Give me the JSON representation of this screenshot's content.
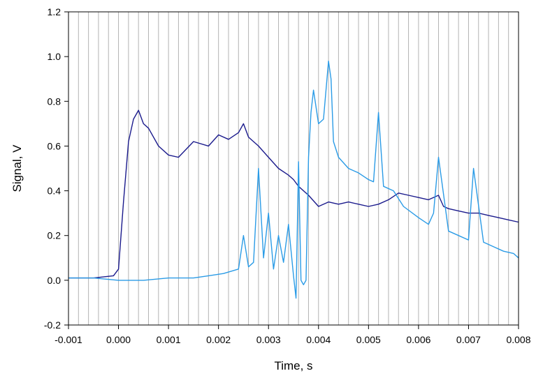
{
  "chart_data": {
    "type": "line",
    "title": "",
    "xlabel": "Time, s",
    "ylabel": "Signal, V",
    "xlim": [
      -0.001,
      0.008
    ],
    "ylim": [
      -0.2,
      1.2
    ],
    "x_ticks": [
      -0.001,
      0.0,
      0.001,
      0.002,
      0.003,
      0.004,
      0.005,
      0.006,
      0.007,
      0.008
    ],
    "x_tick_labels": [
      "-0.001",
      "0.000",
      "0.001",
      "0.002",
      "0.003",
      "0.004",
      "0.005",
      "0.006",
      "0.007",
      "0.008"
    ],
    "y_ticks": [
      -0.2,
      0.0,
      0.2,
      0.4,
      0.6,
      0.8,
      1.0,
      1.2
    ],
    "y_tick_labels": [
      "-0.2",
      "0.0",
      "0.2",
      "0.4",
      "0.6",
      "0.8",
      "1.0",
      "1.2"
    ],
    "grid": "vertical",
    "legend": "none",
    "series": [
      {
        "color": "#1a1a8c",
        "x": [
          -0.001,
          -0.0005,
          -0.0001,
          0.0,
          0.0001,
          0.0002,
          0.0003,
          0.0004,
          0.0005,
          0.0006,
          0.0008,
          0.001,
          0.0012,
          0.0015,
          0.0018,
          0.002,
          0.0022,
          0.0024,
          0.0025,
          0.0026,
          0.0028,
          0.003,
          0.0032,
          0.0034,
          0.0035,
          0.0036,
          0.0038,
          0.004,
          0.0042,
          0.0044,
          0.0046,
          0.0048,
          0.005,
          0.0052,
          0.0054,
          0.0056,
          0.0058,
          0.006,
          0.0062,
          0.0064,
          0.0065,
          0.0066,
          0.0068,
          0.007,
          0.0072,
          0.0074,
          0.0076,
          0.0078,
          0.008
        ],
        "y": [
          0.01,
          0.01,
          0.02,
          0.05,
          0.35,
          0.62,
          0.72,
          0.76,
          0.7,
          0.68,
          0.6,
          0.56,
          0.55,
          0.62,
          0.6,
          0.65,
          0.63,
          0.66,
          0.7,
          0.64,
          0.6,
          0.55,
          0.5,
          0.47,
          0.45,
          0.42,
          0.38,
          0.33,
          0.35,
          0.34,
          0.35,
          0.34,
          0.33,
          0.34,
          0.36,
          0.39,
          0.38,
          0.37,
          0.36,
          0.38,
          0.33,
          0.32,
          0.31,
          0.3,
          0.3,
          0.29,
          0.28,
          0.27,
          0.26
        ]
      },
      {
        "color": "#2a9be6",
        "x": [
          -0.001,
          -0.0005,
          0.0,
          0.0005,
          0.001,
          0.0015,
          0.0018,
          0.0021,
          0.0024,
          0.0025,
          0.0026,
          0.0027,
          0.0028,
          0.0029,
          0.003,
          0.0031,
          0.0032,
          0.0033,
          0.0034,
          0.0035,
          0.00355,
          0.0036,
          0.00365,
          0.0037,
          0.00375,
          0.0038,
          0.00385,
          0.0039,
          0.004,
          0.0041,
          0.0042,
          0.00425,
          0.0043,
          0.0044,
          0.0046,
          0.0048,
          0.005,
          0.0051,
          0.0052,
          0.0053,
          0.0055,
          0.0057,
          0.006,
          0.0062,
          0.0063,
          0.0064,
          0.0066,
          0.0068,
          0.007,
          0.0071,
          0.0073,
          0.0075,
          0.0077,
          0.0079,
          0.008
        ],
        "y": [
          0.01,
          0.01,
          0.0,
          0.0,
          0.01,
          0.01,
          0.02,
          0.03,
          0.05,
          0.2,
          0.06,
          0.08,
          0.5,
          0.1,
          0.3,
          0.05,
          0.2,
          0.08,
          0.25,
          0.02,
          -0.08,
          0.53,
          0.0,
          -0.02,
          0.0,
          0.55,
          0.75,
          0.85,
          0.7,
          0.72,
          0.98,
          0.9,
          0.62,
          0.55,
          0.5,
          0.48,
          0.45,
          0.44,
          0.75,
          0.42,
          0.4,
          0.33,
          0.28,
          0.25,
          0.3,
          0.55,
          0.22,
          0.2,
          0.18,
          0.5,
          0.17,
          0.15,
          0.13,
          0.12,
          0.1
        ]
      }
    ]
  }
}
